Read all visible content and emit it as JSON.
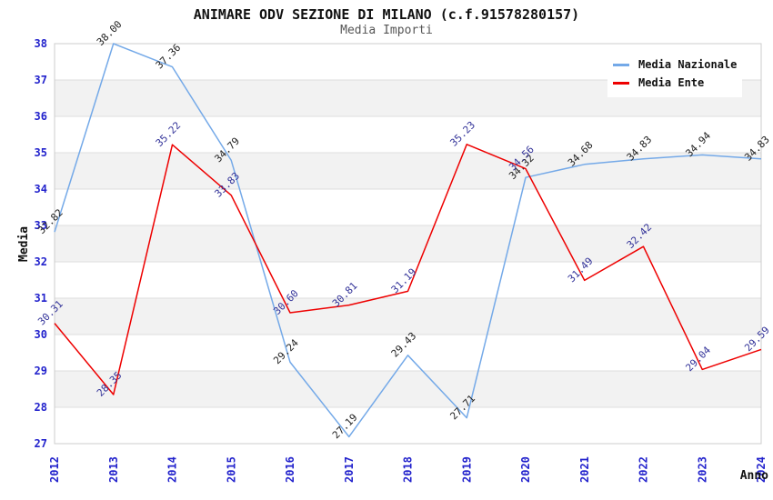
{
  "chart_data": {
    "type": "line",
    "title": "ANIMARE ODV SEZIONE DI MILANO (c.f.91578280157)",
    "subtitle": "Media Importi",
    "xlabel": "Anno",
    "ylabel": "Media",
    "x": [
      "2012",
      "2013",
      "2014",
      "2015",
      "2016",
      "2017",
      "2018",
      "2019",
      "2020",
      "2021",
      "2022",
      "2023",
      "2024"
    ],
    "ylim": [
      27,
      38
    ],
    "y_tick_step": 1,
    "grid": true,
    "band_color": "#f2f2f2",
    "grid_color": "#dddddd",
    "plot_border_color": "#cccccc",
    "tick_label_color": "#2222cc",
    "axis_title_color": "#111111",
    "legend_position": "top-right",
    "series": [
      {
        "name": "Media Nazionale",
        "color": "#74a9e8",
        "label_color": "#222222",
        "values": [
          32.82,
          38.0,
          37.36,
          34.79,
          29.24,
          27.19,
          29.43,
          27.71,
          34.32,
          34.68,
          34.83,
          34.94,
          34.83
        ]
      },
      {
        "name": "Media Ente",
        "color": "#ee0000",
        "label_color": "#333399",
        "values": [
          30.31,
          28.35,
          35.22,
          33.83,
          30.6,
          30.81,
          31.19,
          35.23,
          34.56,
          31.49,
          32.42,
          29.04,
          29.59
        ]
      }
    ]
  }
}
